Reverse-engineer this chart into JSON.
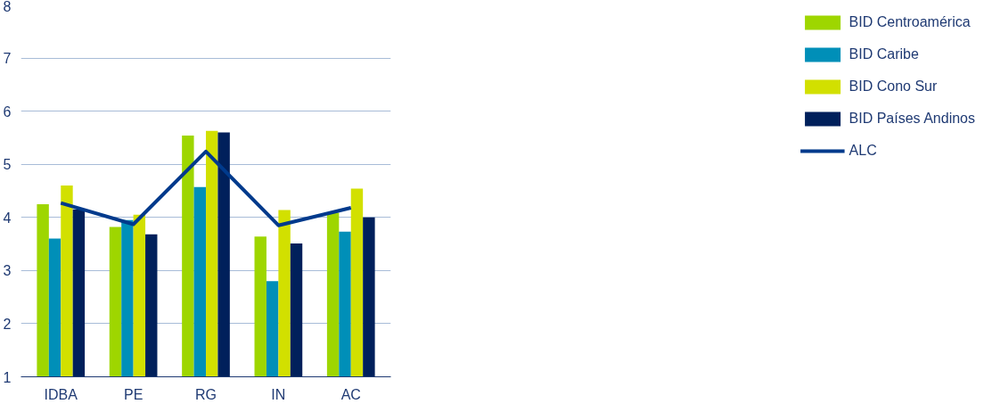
{
  "chart_data": {
    "type": "bar",
    "categories": [
      "IDBA",
      "PE",
      "RG",
      "IN",
      "AC"
    ],
    "series": [
      {
        "name": "BID Centroamérica",
        "color": "#9ed600",
        "values": [
          4.25,
          3.82,
          5.54,
          3.64,
          4.09
        ]
      },
      {
        "name": "BID Caribe",
        "color": "#008fb8",
        "values": [
          3.6,
          3.95,
          4.57,
          2.8,
          3.73
        ]
      },
      {
        "name": "BID Cono Sur",
        "color": "#d2e000",
        "values": [
          4.6,
          4.05,
          5.63,
          4.14,
          4.54
        ]
      },
      {
        "name": "BID Países Andinos",
        "color": "#00205b",
        "values": [
          4.15,
          3.68,
          5.6,
          3.51,
          4.0
        ]
      },
      {
        "name": "ALC",
        "type": "line",
        "color": "#003a8c",
        "values": [
          4.27,
          3.87,
          5.24,
          3.85,
          4.18
        ]
      }
    ],
    "ylim": [
      1,
      8
    ],
    "yticks": [
      1,
      2,
      3,
      4,
      5,
      6,
      7,
      8
    ],
    "grid": "y",
    "legend": "right",
    "marker": "none"
  }
}
